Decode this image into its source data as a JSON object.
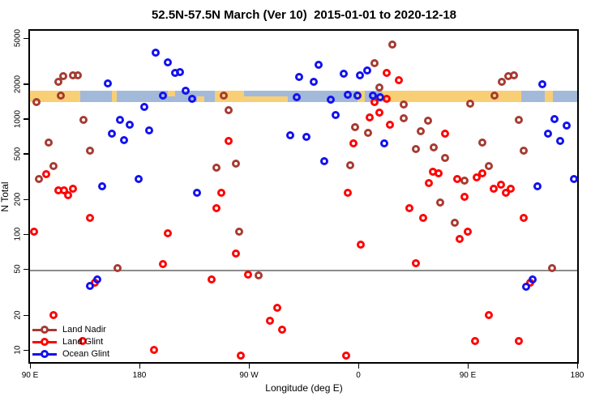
{
  "chart_data": {
    "type": "scatter",
    "title": "52.5N-57.5N March (Ver 10)  2015-01-01 to 2020-12-18",
    "xlabel": "Longitude (deg E)",
    "ylabel": "N Total",
    "x_axis": {
      "note": "axis spans 450 degrees of longitude eastward from 90E through the dateline to 180",
      "range_axis_deg": [
        90,
        540
      ],
      "ticks": [
        {
          "axis_deg": 90,
          "label": "90 E"
        },
        {
          "axis_deg": 180,
          "label": "180"
        },
        {
          "axis_deg": 270,
          "label": "90 W"
        },
        {
          "axis_deg": 360,
          "label": "0"
        },
        {
          "axis_deg": 450,
          "label": "90 E"
        },
        {
          "axis_deg": 540,
          "label": "180"
        }
      ],
      "grid": false
    },
    "y_axis": {
      "scale": "log",
      "range": [
        7.5,
        5800
      ],
      "ticks": [
        {
          "value": 10,
          "label": "10"
        },
        {
          "value": 20,
          "label": "20"
        },
        {
          "value": 50,
          "label": "50"
        },
        {
          "value": 100,
          "label": "100"
        },
        {
          "value": 200,
          "label": "200"
        },
        {
          "value": 500,
          "label": "500"
        },
        {
          "value": 1000,
          "label": "1000"
        },
        {
          "value": 2000,
          "label": "2000"
        },
        {
          "value": 5000,
          "label": "5000"
        }
      ],
      "grid": false
    },
    "reference_line": {
      "y_value": 50,
      "color": "#8c8c8c"
    },
    "land_ocean_band": {
      "n_top": 1740,
      "n_bottom": 1390,
      "land_color": "#F9CF75",
      "ocean_color": "#A3B9D9",
      "segments": [
        {
          "from": 90,
          "to": 131,
          "type": "land"
        },
        {
          "from": 131,
          "to": 157,
          "type": "ocean"
        },
        {
          "from": 157,
          "to": 161,
          "type": "land"
        },
        {
          "from": 161,
          "to": 203,
          "type": "ocean"
        },
        {
          "from": 203,
          "to": 209,
          "type": "land-upper"
        },
        {
          "from": 209,
          "to": 227,
          "type": "ocean"
        },
        {
          "from": 227,
          "to": 233,
          "type": "land-lower"
        },
        {
          "from": 233,
          "to": 242,
          "type": "ocean"
        },
        {
          "from": 242,
          "to": 266,
          "type": "land"
        },
        {
          "from": 266,
          "to": 302,
          "type": "ocean-upper"
        },
        {
          "from": 302,
          "to": 359,
          "type": "ocean"
        },
        {
          "from": 359,
          "to": 365,
          "type": "land"
        },
        {
          "from": 365,
          "to": 372,
          "type": "ocean"
        },
        {
          "from": 372,
          "to": 379,
          "type": "ocean-upper"
        },
        {
          "from": 379,
          "to": 494,
          "type": "land"
        },
        {
          "from": 494,
          "to": 513,
          "type": "ocean"
        },
        {
          "from": 513,
          "to": 520,
          "type": "land"
        },
        {
          "from": 520,
          "to": 540,
          "type": "ocean"
        }
      ]
    },
    "legend": {
      "position": "bottom-left",
      "items": [
        {
          "label": "Land Nadir",
          "color": "#A63B32"
        },
        {
          "label": "Land Glint",
          "color": "#FF0000"
        },
        {
          "label": "Ocean Glint",
          "color": "#1212F0"
        }
      ]
    },
    "series": [
      {
        "name": "Land Nadir",
        "color": "#A63B32",
        "marker": "open-circle",
        "points": [
          [
            113,
            2100
          ],
          [
            117,
            2340
          ],
          [
            125,
            2400
          ],
          [
            129,
            2400
          ],
          [
            115,
            1600
          ],
          [
            95,
            1390
          ],
          [
            134,
            980
          ],
          [
            139,
            530
          ],
          [
            105,
            620
          ],
          [
            109,
            390
          ],
          [
            97,
            300
          ],
          [
            249,
            1600
          ],
          [
            253,
            1200
          ],
          [
            243,
            380
          ],
          [
            259,
            410
          ],
          [
            262,
            105
          ],
          [
            278,
            44
          ],
          [
            353,
            400
          ],
          [
            357,
            850
          ],
          [
            368,
            760
          ],
          [
            373,
            3030
          ],
          [
            388,
            4400
          ],
          [
            377,
            1860
          ],
          [
            397,
            1020
          ],
          [
            397,
            1340
          ],
          [
            411,
            780
          ],
          [
            417,
            970
          ],
          [
            407,
            550
          ],
          [
            422,
            570
          ],
          [
            431,
            460
          ],
          [
            427,
            190
          ],
          [
            439,
            126
          ],
          [
            447,
            290
          ],
          [
            452,
            1360
          ],
          [
            467,
            390
          ],
          [
            472,
            1600
          ],
          [
            478,
            2090
          ],
          [
            483,
            2340
          ],
          [
            488,
            2400
          ],
          [
            492,
            980
          ],
          [
            496,
            530
          ],
          [
            462,
            620
          ],
          [
            519,
            51
          ],
          [
            162,
            51
          ]
        ]
      },
      {
        "name": "Land Glint",
        "color": "#FF0000",
        "marker": "open-circle",
        "points": [
          [
            103,
            330
          ],
          [
            113,
            240
          ],
          [
            118,
            240
          ],
          [
            125,
            250
          ],
          [
            121,
            220
          ],
          [
            93,
            105
          ],
          [
            139,
            140
          ],
          [
            203,
            103
          ],
          [
            199,
            55
          ],
          [
            143,
            38
          ],
          [
            109,
            20
          ],
          [
            133,
            12
          ],
          [
            192,
            10
          ],
          [
            247,
            230
          ],
          [
            243,
            170
          ],
          [
            253,
            640
          ],
          [
            239,
            41
          ],
          [
            269,
            45
          ],
          [
            259,
            68
          ],
          [
            293,
            23
          ],
          [
            287,
            18
          ],
          [
            297,
            15
          ],
          [
            263,
            9
          ],
          [
            350,
            9
          ],
          [
            351,
            230
          ],
          [
            362,
            81
          ],
          [
            356,
            610
          ],
          [
            383,
            2500
          ],
          [
            393,
            2150
          ],
          [
            383,
            1500
          ],
          [
            373,
            1390
          ],
          [
            377,
            1140
          ],
          [
            369,
            1030
          ],
          [
            386,
            890
          ],
          [
            407,
            56
          ],
          [
            402,
            170
          ],
          [
            413,
            140
          ],
          [
            418,
            280
          ],
          [
            421,
            350
          ],
          [
            426,
            340
          ],
          [
            431,
            740
          ],
          [
            441,
            300
          ],
          [
            447,
            210
          ],
          [
            443,
            92
          ],
          [
            450,
            105
          ],
          [
            457,
            310
          ],
          [
            462,
            340
          ],
          [
            471,
            250
          ],
          [
            477,
            270
          ],
          [
            481,
            230
          ],
          [
            485,
            250
          ],
          [
            496,
            140
          ],
          [
            467,
            20
          ],
          [
            492,
            12
          ],
          [
            456,
            12
          ],
          [
            501,
            38
          ]
        ]
      },
      {
        "name": "Ocean Glint",
        "color": "#1212F0",
        "marker": "open-circle",
        "points": [
          [
            193,
            3750
          ],
          [
            203,
            3080
          ],
          [
            209,
            2500
          ],
          [
            213,
            2540
          ],
          [
            154,
            2020
          ],
          [
            199,
            1600
          ],
          [
            218,
            1740
          ],
          [
            223,
            1500
          ],
          [
            184,
            1260
          ],
          [
            164,
            980
          ],
          [
            172,
            890
          ],
          [
            188,
            800
          ],
          [
            157,
            740
          ],
          [
            167,
            650
          ],
          [
            179,
            300
          ],
          [
            149,
            260
          ],
          [
            227,
            230
          ],
          [
            139,
            36
          ],
          [
            145,
            41
          ],
          [
            309,
            1550
          ],
          [
            327,
            2940
          ],
          [
            311,
            2300
          ],
          [
            323,
            2090
          ],
          [
            337,
            1460
          ],
          [
            348,
            2460
          ],
          [
            361,
            2400
          ],
          [
            367,
            2620
          ],
          [
            351,
            1630
          ],
          [
            359,
            1580
          ],
          [
            372,
            1580
          ],
          [
            378,
            1550
          ],
          [
            341,
            1080
          ],
          [
            304,
            720
          ],
          [
            317,
            700
          ],
          [
            332,
            430
          ],
          [
            381,
            610
          ],
          [
            511,
            1990
          ],
          [
            521,
            1000
          ],
          [
            531,
            880
          ],
          [
            516,
            740
          ],
          [
            526,
            640
          ],
          [
            507,
            260
          ],
          [
            537,
            300
          ],
          [
            503,
            41
          ],
          [
            498,
            35
          ]
        ]
      }
    ]
  }
}
